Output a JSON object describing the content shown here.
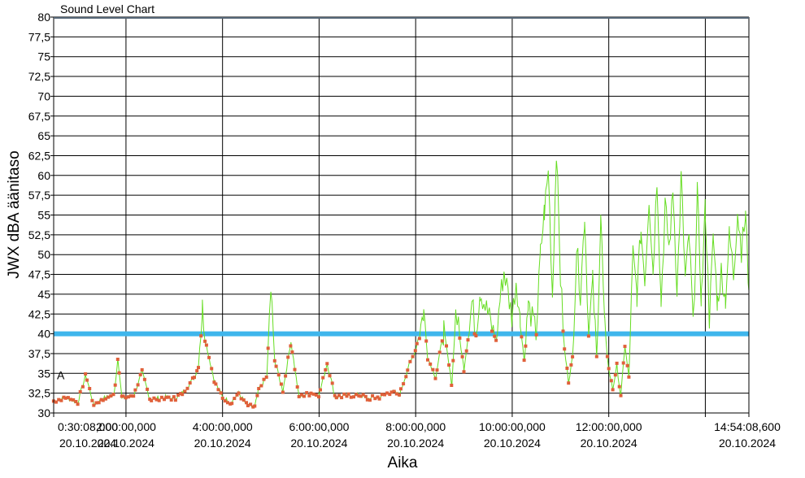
{
  "chart_data": {
    "type": "line",
    "title": "Sound Level Chart",
    "xlabel": "Aika",
    "ylabel": "JWX dBA äänitaso",
    "ylim": [
      30,
      80
    ],
    "y_ticks": [
      "30",
      "32,5",
      "35",
      "37,5",
      "40",
      "42,5",
      "45",
      "47,5",
      "50",
      "52,5",
      "55",
      "57,5",
      "60",
      "62,5",
      "65",
      "67,5",
      "70",
      "72,5",
      "75",
      "77,5",
      "80"
    ],
    "x_range": [
      "00:30:08",
      "14:54:08.6"
    ],
    "x_ticks": [
      {
        "time": "0:30:08,000",
        "date": "20.10.2024",
        "at": "00:30:08"
      },
      {
        "time": "2:00:00,000",
        "date": "20.10.2024",
        "at": "02:00:00"
      },
      {
        "time": "4:00:00,000",
        "date": "20.10.2024",
        "at": "04:00:00"
      },
      {
        "time": "6:00:00,000",
        "date": "20.10.2024",
        "at": "06:00:00"
      },
      {
        "time": "8:00:00,000",
        "date": "20.10.2024",
        "at": "08:00:00"
      },
      {
        "time": "10:00:00,000",
        "date": "20.10.2024",
        "at": "10:00:00"
      },
      {
        "time": "12:00:00,000",
        "date": "20.10.2024",
        "at": "12:00:00"
      },
      {
        "time": "14:54:08,600",
        "date": "20.10.2024",
        "at": "14:54:08.6"
      }
    ],
    "extra_gridline": "14:00:00",
    "threshold": {
      "value": 40,
      "color": "#3fb6ec"
    },
    "marker_a": {
      "label": "A",
      "value": 35
    },
    "series": [
      {
        "color": "#66dd22",
        "marker_color": "#e0603a",
        "points": [
          [
            "00:30",
            31.5
          ],
          [
            "00:45",
            32.0
          ],
          [
            "01:00",
            31.3
          ],
          [
            "01:10",
            34.8
          ],
          [
            "01:20",
            31.0
          ],
          [
            "01:30",
            31.8
          ],
          [
            "01:45",
            32.2
          ],
          [
            "01:50",
            37.0
          ],
          [
            "01:55",
            31.8
          ],
          [
            "02:10",
            32.3
          ],
          [
            "02:20",
            35.2
          ],
          [
            "02:30",
            31.7
          ],
          [
            "02:50",
            32.0
          ],
          [
            "03:00",
            31.8
          ],
          [
            "03:10",
            32.5
          ],
          [
            "03:25",
            34.5
          ],
          [
            "03:30",
            36.0
          ],
          [
            "03:35",
            43.3
          ],
          [
            "03:40",
            38.5
          ],
          [
            "03:50",
            34.0
          ],
          [
            "04:00",
            32.0
          ],
          [
            "04:10",
            31.3
          ],
          [
            "04:20",
            32.5
          ],
          [
            "04:30",
            31.0
          ],
          [
            "04:40",
            30.7
          ],
          [
            "04:45",
            33.0
          ],
          [
            "04:55",
            34.5
          ],
          [
            "05:00",
            45.5
          ],
          [
            "05:05",
            36.5
          ],
          [
            "05:15",
            32.8
          ],
          [
            "05:25",
            39.0
          ],
          [
            "05:35",
            32.0
          ],
          [
            "05:50",
            32.5
          ],
          [
            "06:00",
            32.3
          ],
          [
            "06:10",
            36.3
          ],
          [
            "06:20",
            32.0
          ],
          [
            "06:35",
            32.2
          ],
          [
            "06:50",
            32.3
          ],
          [
            "07:00",
            31.8
          ],
          [
            "07:15",
            32.0
          ],
          [
            "07:30",
            32.7
          ],
          [
            "07:40",
            32.3
          ],
          [
            "07:50",
            35.5
          ],
          [
            "08:00",
            38.0
          ],
          [
            "08:10",
            42.8
          ],
          [
            "08:15",
            37.0
          ],
          [
            "08:25",
            34.5
          ],
          [
            "08:35",
            40.5
          ],
          [
            "08:45",
            33.5
          ],
          [
            "08:50",
            43.0
          ],
          [
            "09:00",
            35.5
          ],
          [
            "09:05",
            39.5
          ],
          [
            "09:10",
            44.0
          ],
          [
            "09:15",
            40.0
          ],
          [
            "09:20",
            45.5
          ],
          [
            "09:30",
            42.5
          ],
          [
            "09:40",
            39.0
          ],
          [
            "09:45",
            44.5
          ],
          [
            "09:50",
            48.0
          ],
          [
            "10:00",
            42.0
          ],
          [
            "10:05",
            47.0
          ],
          [
            "10:10",
            41.5
          ],
          [
            "10:15",
            36.5
          ],
          [
            "10:20",
            43.5
          ],
          [
            "10:30",
            40.0
          ],
          [
            "10:35",
            50.0
          ],
          [
            "10:40",
            55.5
          ],
          [
            "10:45",
            60.5
          ],
          [
            "10:50",
            45.0
          ],
          [
            "10:55",
            63.5
          ],
          [
            "11:00",
            47.0
          ],
          [
            "11:05",
            38.0
          ],
          [
            "11:10",
            34.0
          ],
          [
            "11:15",
            37.0
          ],
          [
            "11:20",
            51.0
          ],
          [
            "11:25",
            45.0
          ],
          [
            "11:30",
            55.0
          ],
          [
            "11:35",
            40.0
          ],
          [
            "11:40",
            46.5
          ],
          [
            "11:45",
            37.0
          ],
          [
            "11:50",
            55.0
          ],
          [
            "11:55",
            40.5
          ],
          [
            "12:00",
            35.5
          ],
          [
            "12:05",
            33.0
          ],
          [
            "12:10",
            36.0
          ],
          [
            "12:15",
            32.0
          ],
          [
            "12:20",
            38.5
          ],
          [
            "12:25",
            34.5
          ],
          [
            "12:30",
            50.0
          ],
          [
            "12:35",
            45.0
          ],
          [
            "12:40",
            53.0
          ],
          [
            "12:45",
            47.0
          ],
          [
            "12:50",
            57.5
          ],
          [
            "12:55",
            48.0
          ],
          [
            "13:00",
            60.0
          ],
          [
            "13:05",
            44.0
          ],
          [
            "13:10",
            56.0
          ],
          [
            "13:15",
            51.0
          ],
          [
            "13:20",
            58.0
          ],
          [
            "13:25",
            45.5
          ],
          [
            "13:30",
            59.8
          ],
          [
            "13:35",
            47.0
          ],
          [
            "13:40",
            52.0
          ],
          [
            "13:45",
            41.0
          ],
          [
            "13:50",
            57.5
          ],
          [
            "13:55",
            44.5
          ],
          [
            "14:00",
            56.0
          ],
          [
            "14:05",
            42.0
          ],
          [
            "14:10",
            52.0
          ],
          [
            "14:15",
            44.0
          ],
          [
            "14:20",
            48.0
          ],
          [
            "14:25",
            44.5
          ],
          [
            "14:30",
            52.5
          ],
          [
            "14:35",
            47.5
          ],
          [
            "14:40",
            55.5
          ],
          [
            "14:45",
            50.5
          ],
          [
            "14:50",
            55.0
          ],
          [
            "14:54",
            45.5
          ]
        ]
      }
    ]
  }
}
